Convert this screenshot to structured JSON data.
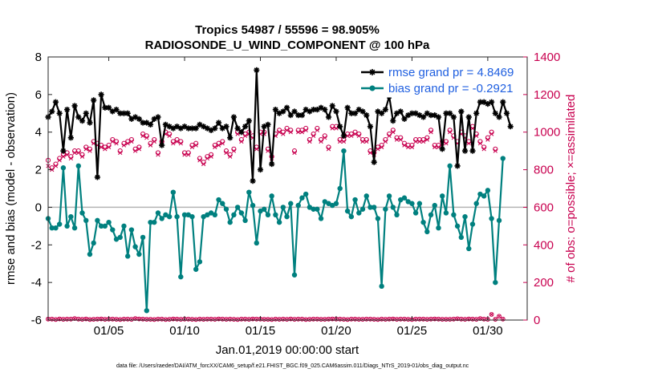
{
  "chart_data": {
    "type": "line",
    "title": "Tropics 54987 / 55596 = 98.905%",
    "subtitle": "RADIOSONDE_U_WIND_COMPONENT @ 100 hPa",
    "xlabel": "Jan.01,2019 00:00:00 start",
    "ylabel": "rmse and bias (model - observation)",
    "y2label": "# of obs: o=possible; ×=assimilated",
    "footnote": "data file: /Users/raeder/DAI/ATM_forcXX/CAM6_setup/f.e21.FHIST_BGC.f09_025.CAM6assim.011/Diags_NTrS_2019-01/obs_diag_output.nc",
    "xlim": [
      1,
      32.6
    ],
    "ylim": [
      -6,
      8
    ],
    "y2lim": [
      0,
      1400
    ],
    "xticks": [
      5,
      10,
      15,
      20,
      25,
      30
    ],
    "xticklabels": [
      "01/05",
      "01/10",
      "01/15",
      "01/20",
      "01/25",
      "01/30"
    ],
    "yticks": [
      -6,
      -4,
      -2,
      0,
      2,
      4,
      6,
      8
    ],
    "yticklabels": [
      "-6",
      "-4",
      "-2",
      "0",
      "2",
      "4",
      "6",
      "8"
    ],
    "y2ticks": [
      0,
      200,
      400,
      600,
      800,
      1000,
      1200,
      1400
    ],
    "y2ticklabels": [
      "0",
      "200",
      "400",
      "600",
      "800",
      "1000",
      "1200",
      "1400"
    ],
    "colors": {
      "rmse": "#000000",
      "bias": "#00807f",
      "obs": "#c8004f",
      "zero_line": "#b4b4b4",
      "legend_text": "#1f5fe0"
    },
    "series": [
      {
        "name": "rmse grand pr = 4.8469",
        "color": "#000000",
        "values": [
          4.8,
          5.1,
          5.6,
          5.0,
          3.0,
          5.2,
          3.7,
          5.4,
          4.8,
          4.6,
          5.0,
          4.5,
          5.7,
          1.6,
          6.0,
          5.3,
          5.3,
          5.1,
          5.2,
          5.0,
          5.0,
          5.0,
          4.7,
          4.8,
          4.7,
          4.5,
          4.5,
          4.4,
          4.7,
          4.8,
          3.3,
          4.4,
          4.3,
          4.2,
          4.3,
          4.2,
          4.3,
          4.2,
          4.2,
          4.2,
          4.4,
          4.3,
          4.2,
          4.1,
          4.2,
          4.5,
          4.2,
          4.3,
          3.7,
          4.8,
          4.2,
          4.0,
          4.3,
          4.6,
          1.4,
          7.3,
          2.0,
          4.3,
          4.4,
          2.3,
          5.2,
          5.0,
          5.1,
          5.3,
          4.9,
          5.1,
          4.9,
          4.9,
          5.2,
          5.1,
          5.2,
          5.2,
          5.3,
          5.2,
          4.8,
          5.4,
          5.1,
          4.3,
          3.8,
          5.3,
          5.0,
          5.0,
          5.2,
          5.1,
          4.9,
          4.3,
          2.4,
          5.1,
          5.0,
          5.2,
          5.9,
          4.6,
          5.0,
          5.1,
          4.7,
          4.9,
          5.0,
          5.0,
          4.9,
          4.8,
          5.0,
          4.9,
          4.9,
          4.8,
          3.1,
          5.0,
          5.0,
          4.8,
          2.2,
          5.1,
          3.0,
          4.8,
          3.0,
          5.0,
          5.6,
          5.6,
          5.5,
          5.6,
          5.0,
          4.8,
          5.6,
          5.0,
          4.3
        ]
      },
      {
        "name": "bias grand pr = -0.2921",
        "color": "#00807f",
        "values": [
          -0.6,
          -1.1,
          -1.1,
          -0.9,
          2.1,
          -1.0,
          -0.5,
          -1.1,
          2.2,
          -0.3,
          -0.7,
          -2.5,
          -1.9,
          -0.7,
          -1.0,
          -1.0,
          -0.8,
          -1.2,
          -1.7,
          -1.6,
          -1.0,
          -2.6,
          -1.2,
          -2.1,
          -2.5,
          -1.6,
          -5.5,
          -0.8,
          -0.8,
          -0.3,
          -0.6,
          -0.4,
          -0.5,
          0.8,
          -0.5,
          -3.7,
          -0.4,
          -0.4,
          -0.5,
          -3.3,
          -2.9,
          -0.5,
          -0.4,
          -0.3,
          -0.4,
          0.4,
          0.2,
          -0.1,
          -0.8,
          -0.4,
          0.0,
          -0.3,
          -0.7,
          0.8,
          0.1,
          -1.9,
          -0.2,
          -0.1,
          -0.4,
          0.6,
          -0.4,
          -0.8,
          0.0,
          -0.5,
          0.2,
          -3.6,
          0.1,
          0.5,
          0.7,
          0.0,
          -0.1,
          -0.1,
          -0.6,
          0.3,
          0.2,
          0.1,
          0.2,
          1.0,
          3.0,
          -0.2,
          -0.5,
          0.4,
          -0.3,
          -0.1,
          0.6,
          0.0,
          0.0,
          -0.6,
          -4.2,
          -0.1,
          0.6,
          0.0,
          -0.4,
          0.4,
          0.5,
          0.3,
          0.2,
          -0.3,
          0.2,
          -0.8,
          -1.3,
          -0.4,
          0.1,
          -1.1,
          0.6,
          -0.3,
          2.2,
          -0.4,
          -1.0,
          -1.6,
          -0.5,
          -2.2,
          -0.9,
          0.2,
          0.7,
          0.6,
          0.9,
          -0.6,
          -4.0,
          -0.7,
          2.6
        ]
      },
      {
        "name": "obs possible",
        "color": "#c8004f",
        "values": [
          850,
          810,
          830,
          860,
          880,
          890,
          870,
          900,
          900,
          880,
          920,
          910,
          950,
          940,
          930,
          920,
          930,
          960,
          950,
          900,
          940,
          950,
          960,
          910,
          920,
          990,
          980,
          940,
          960,
          890,
          950,
          1000,
          990,
          950,
          960,
          950,
          890,
          890,
          930,
          940,
          860,
          840,
          870,
          880,
          930,
          940,
          950,
          900,
          880,
          910,
          1000,
          960,
          990,
          1000,
          980,
          920,
          1000,
          1000,
          910,
          870,
          990,
          1010,
          1000,
          1020,
          1010,
          900,
          1010,
          1010,
          1020,
          960,
          990,
          1020,
          960,
          980,
          920,
          1030,
          1030,
          960,
          960,
          990,
          990,
          1000,
          990,
          960,
          960,
          900,
          890,
          920,
          930,
          960,
          990,
          1010,
          970,
          970,
          940,
          930,
          930,
          960,
          960,
          960,
          970,
          1010,
          930,
          930,
          950,
          950,
          1010,
          980,
          950,
          1000,
          980,
          950,
          1030,
          990,
          950,
          920,
          970,
          1000,
          910
        ]
      },
      {
        "name": "obs assimilated",
        "color": "#c8004f",
        "values": [
          820,
          800,
          820,
          850,
          870,
          880,
          860,
          890,
          890,
          870,
          910,
          900,
          940,
          930,
          920,
          910,
          920,
          950,
          940,
          890,
          930,
          940,
          950,
          900,
          910,
          980,
          970,
          930,
          950,
          880,
          940,
          990,
          980,
          940,
          950,
          940,
          880,
          880,
          920,
          930,
          850,
          830,
          860,
          870,
          920,
          930,
          940,
          890,
          870,
          900,
          990,
          950,
          980,
          990,
          970,
          910,
          990,
          990,
          900,
          860,
          980,
          1000,
          990,
          1010,
          1000,
          890,
          1000,
          1000,
          1010,
          950,
          980,
          1010,
          950,
          970,
          910,
          1020,
          1020,
          950,
          950,
          980,
          980,
          990,
          980,
          950,
          950,
          890,
          880,
          910,
          920,
          950,
          980,
          1000,
          960,
          960,
          930,
          920,
          920,
          950,
          950,
          950,
          960,
          1000,
          920,
          920,
          940,
          940,
          1000,
          970,
          940,
          990,
          970,
          940,
          1020,
          980,
          940,
          910,
          960,
          990,
          900
        ]
      }
    ],
    "low_obs_values": [
      5,
      5,
      3,
      6,
      4,
      5,
      5,
      8,
      5,
      4,
      6,
      3,
      4,
      5,
      6,
      4,
      5,
      5,
      4,
      3,
      5,
      5,
      4,
      8,
      6,
      5,
      4,
      4,
      3,
      5,
      5,
      3,
      4,
      6,
      5,
      4,
      5,
      5,
      4,
      3,
      5,
      4,
      5,
      5,
      4,
      6,
      5,
      4,
      5,
      4,
      3,
      5,
      5,
      4,
      6,
      5,
      5,
      4,
      4,
      3,
      5,
      4,
      5,
      4,
      6,
      4,
      5,
      5,
      3,
      4,
      5,
      5,
      4,
      4,
      5,
      6,
      5,
      5,
      4,
      3,
      5,
      5,
      4,
      4,
      5,
      5,
      4,
      3,
      5,
      4,
      5,
      6,
      4,
      5,
      5,
      4,
      3,
      5,
      5,
      5,
      4,
      5,
      6,
      5,
      4,
      4,
      4,
      5,
      7,
      5,
      4,
      6,
      5,
      4,
      8,
      5,
      4,
      30,
      4,
      20,
      5
    ]
  }
}
